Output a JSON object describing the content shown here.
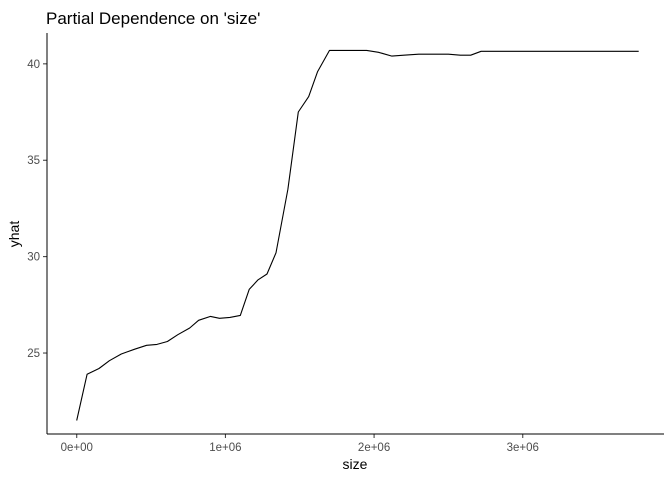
{
  "chart_data": {
    "type": "line",
    "title": "Partial Dependence on 'size'",
    "xlabel": "size",
    "ylabel": "yhat",
    "xlim": [
      -200000,
      3950000
    ],
    "ylim": [
      20.8,
      41.6
    ],
    "x_ticks": [
      {
        "value": 0,
        "label": "0e+00"
      },
      {
        "value": 1000000,
        "label": "1e+06"
      },
      {
        "value": 2000000,
        "label": "2e+06"
      },
      {
        "value": 3000000,
        "label": "3e+06"
      }
    ],
    "y_ticks": [
      {
        "value": 25,
        "label": "25"
      },
      {
        "value": 30,
        "label": "30"
      },
      {
        "value": 35,
        "label": "35"
      },
      {
        "value": 40,
        "label": "40"
      }
    ],
    "grid": false,
    "line_color": "#000000",
    "series": [
      {
        "x": [
          0,
          70000,
          150000,
          220000,
          300000,
          390000,
          470000,
          540000,
          610000,
          680000,
          760000,
          820000,
          900000,
          960000,
          1030000,
          1100000,
          1160000,
          1220000,
          1280000,
          1340000,
          1420000,
          1490000,
          1560000,
          1620000,
          1700000,
          1780000,
          1820000,
          1880000,
          1950000,
          2030000,
          2120000,
          2200000,
          2300000,
          2400000,
          2500000,
          2580000,
          2650000,
          2720000,
          2800000,
          2900000,
          3000000,
          3100000,
          3200000,
          3400000,
          3600000,
          3780000
        ],
        "y": [
          21.5,
          23.9,
          24.2,
          24.6,
          24.95,
          25.2,
          25.4,
          25.45,
          25.6,
          25.95,
          26.3,
          26.7,
          26.9,
          26.8,
          26.85,
          26.95,
          28.3,
          28.8,
          29.1,
          30.2,
          33.5,
          37.5,
          38.3,
          39.6,
          40.7,
          40.7,
          40.7,
          40.7,
          40.7,
          40.6,
          40.4,
          40.45,
          40.5,
          40.5,
          40.5,
          40.45,
          40.45,
          40.65,
          40.65,
          40.65,
          40.65,
          40.65,
          40.65,
          40.65,
          40.65,
          40.65
        ]
      }
    ]
  }
}
